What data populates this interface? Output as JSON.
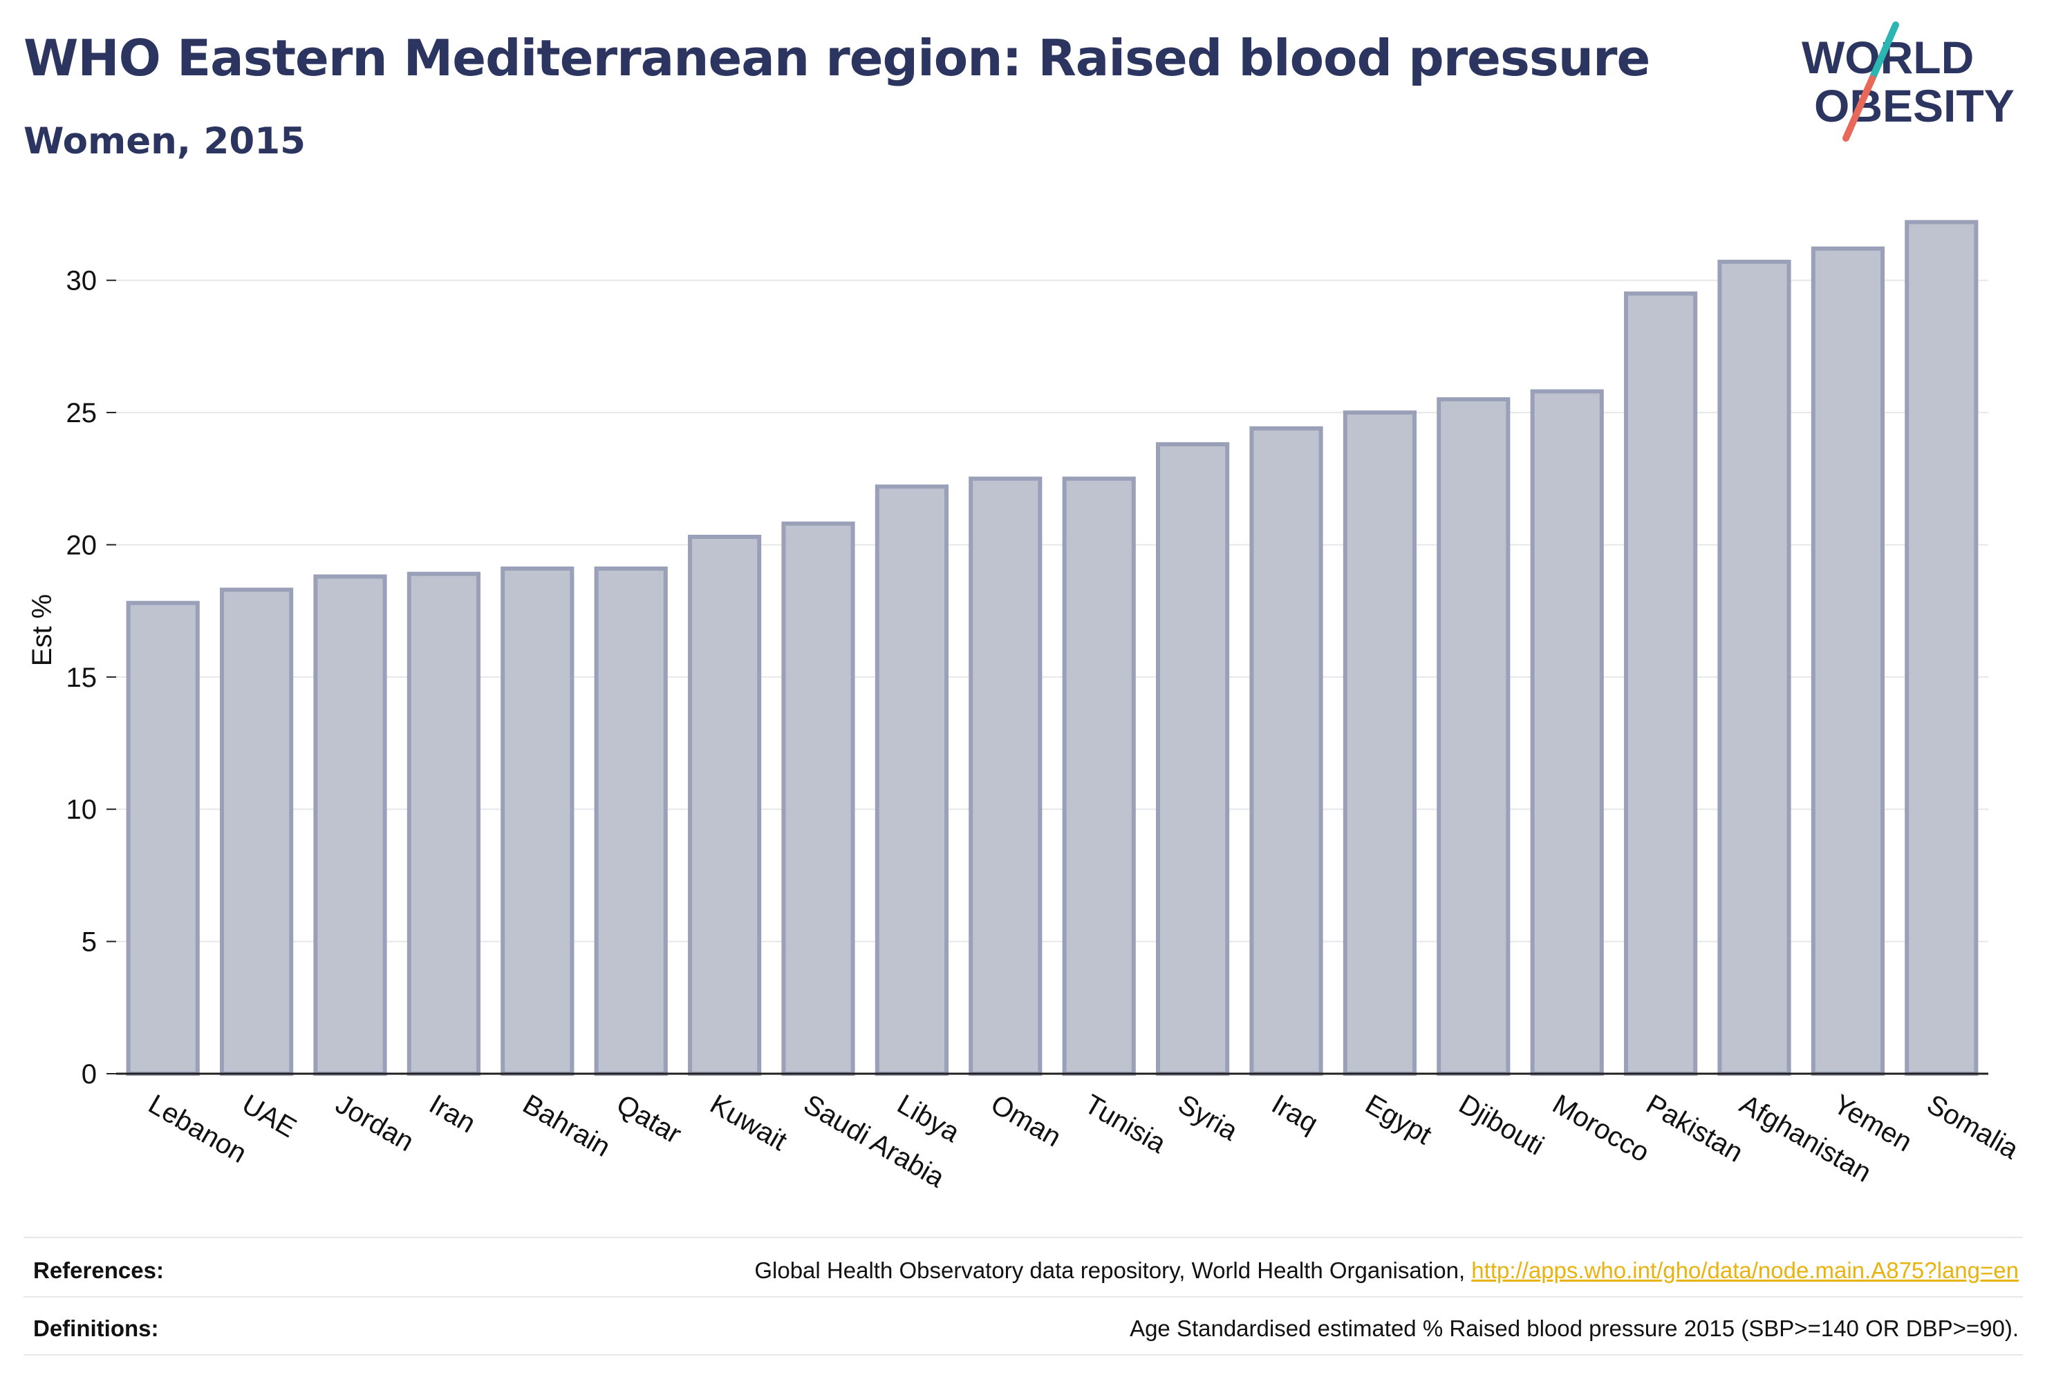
{
  "header": {
    "title": "WHO Eastern Mediterranean region: Raised blood pressure",
    "subtitle": "Women, 2015"
  },
  "logo": {
    "line1": "WORLD",
    "line2": "OBESITY",
    "colors": {
      "text": "#2b3560",
      "slash_top": "#2bb6b1",
      "slash_bottom": "#e8685a"
    }
  },
  "chart_data": {
    "type": "bar",
    "categories": [
      "Lebanon",
      "UAE",
      "Jordan",
      "Iran",
      "Bahrain",
      "Qatar",
      "Kuwait",
      "Saudi Arabia",
      "Libya",
      "Oman",
      "Tunisia",
      "Syria",
      "Iraq",
      "Egypt",
      "Djibouti",
      "Morocco",
      "Pakistan",
      "Afghanistan",
      "Yemen",
      "Somalia"
    ],
    "values": [
      17.8,
      18.3,
      18.8,
      18.9,
      19.1,
      19.1,
      20.3,
      20.8,
      22.2,
      22.5,
      22.5,
      23.8,
      24.4,
      25.0,
      25.5,
      25.8,
      29.5,
      30.7,
      31.2,
      32.2
    ],
    "title": "",
    "xlabel": "",
    "ylabel": "Est %",
    "ylim": [
      0,
      32.5
    ],
    "yticks": [
      0,
      5,
      10,
      15,
      20,
      25,
      30
    ],
    "grid": true,
    "colors": {
      "bar_fill": "#bfc2cf",
      "bar_stroke": "#9aa0b8",
      "axis": "#222222",
      "grid": "#e6e7eb"
    }
  },
  "footer": {
    "references_label": "References:",
    "references_text": "Global Health Observatory data repository, World Health Organisation,",
    "references_link": "http://apps.who.int/gho/data/node.main.A875?lang=en",
    "definitions_label": "Definitions:",
    "definitions_text": "Age Standardised estimated % Raised blood pressure 2015 (SBP>=140 OR DBP>=90)."
  }
}
